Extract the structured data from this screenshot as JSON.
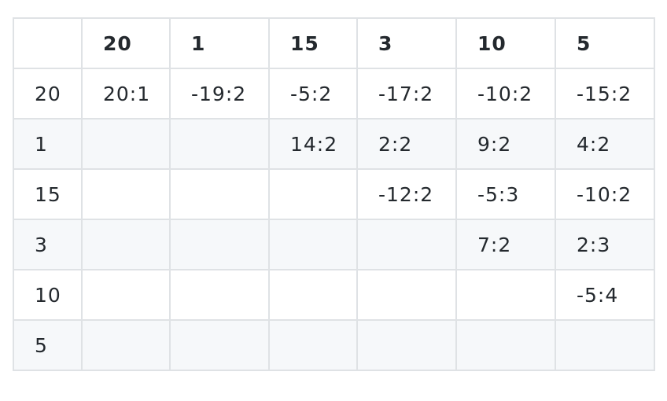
{
  "table": {
    "corner": "",
    "columns": [
      "20",
      "1",
      "15",
      "3",
      "10",
      "5"
    ],
    "rows": [
      {
        "label": "20",
        "cells": [
          "20:1",
          "-19:2",
          "-5:2",
          "-17:2",
          "-10:2",
          "-15:2"
        ]
      },
      {
        "label": "1",
        "cells": [
          "",
          "",
          "14:2",
          "2:2",
          "9:2",
          "4:2"
        ]
      },
      {
        "label": "15",
        "cells": [
          "",
          "",
          "",
          "-12:2",
          "-5:3",
          "-10:2"
        ]
      },
      {
        "label": "3",
        "cells": [
          "",
          "",
          "",
          "",
          "7:2",
          "2:3"
        ]
      },
      {
        "label": "10",
        "cells": [
          "",
          "",
          "",
          "",
          "",
          "-5:4"
        ]
      },
      {
        "label": "5",
        "cells": [
          "",
          "",
          "",
          "",
          "",
          ""
        ]
      }
    ]
  }
}
